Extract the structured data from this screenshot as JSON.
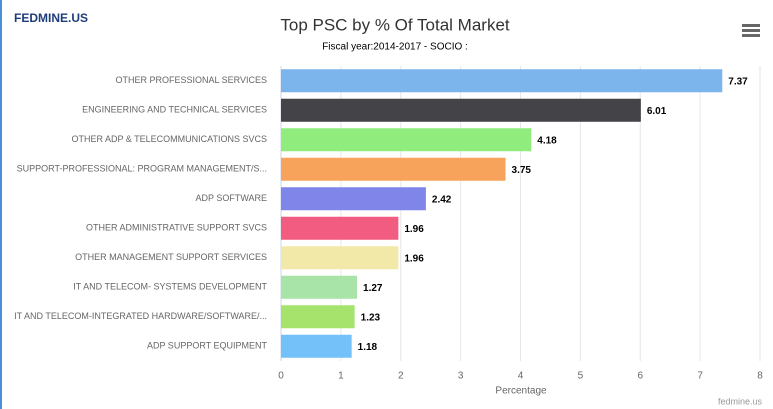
{
  "logo": "FEDMINE.US",
  "credits": "fedmine.us",
  "chart_data": {
    "type": "bar",
    "orientation": "horizontal",
    "title": "Top PSC by % Of Total Market",
    "subtitle": "Fiscal year:2014-2017 - SOCIO :",
    "xlabel": "Percentage",
    "categories": [
      "OTHER PROFESSIONAL SERVICES",
      "ENGINEERING AND TECHNICAL SERVICES",
      "OTHER ADP & TELECOMMUNICATIONS SVCS",
      "SUPPORT-PROFESSIONAL: PROGRAM MANAGEMENT/S...",
      "ADP SOFTWARE",
      "OTHER ADMINISTRATIVE SUPPORT SVCS",
      "OTHER MANAGEMENT SUPPORT SERVICES",
      "IT AND TELECOM- SYSTEMS DEVELOPMENT",
      "IT AND TELECOM-INTEGRATED HARDWARE/SOFTWARE/...",
      "ADP SUPPORT EQUIPMENT"
    ],
    "values": [
      7.37,
      6.01,
      4.18,
      3.75,
      2.42,
      1.96,
      1.96,
      1.27,
      1.23,
      1.18
    ],
    "colors": [
      "#7cb5ec",
      "#434348",
      "#90ed7d",
      "#f7a35c",
      "#8085e9",
      "#f15c80",
      "#f2e8a8",
      "#a8e4a8",
      "#a6e36d",
      "#74c0f8"
    ],
    "xlim": [
      0,
      8
    ],
    "xticks": [
      0,
      1,
      2,
      3,
      4,
      5,
      6,
      7,
      8
    ],
    "grid": true
  }
}
